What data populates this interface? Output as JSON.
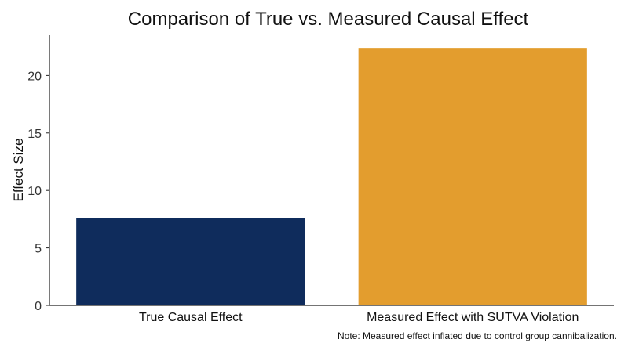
{
  "chart_data": {
    "type": "bar",
    "title": "Comparison of True vs. Measured Causal Effect",
    "xlabel": "",
    "ylabel": "Effect Size",
    "categories": [
      "True Causal Effect",
      "Measured Effect with SUTVA Violation"
    ],
    "values": [
      7.6,
      22.4
    ],
    "colors": [
      "#0f2c5c",
      "#e39d2e"
    ],
    "ylim": [
      0,
      23.5
    ],
    "yticks": [
      0,
      5,
      10,
      15,
      20
    ],
    "grid": false,
    "legend": "none",
    "caption": "Note: Measured effect inflated due to control group cannibalization."
  }
}
